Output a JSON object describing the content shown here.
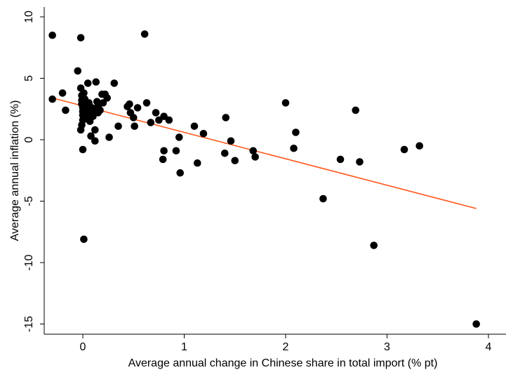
{
  "chart_data": {
    "type": "scatter",
    "xlabel": "Average annual change in Chinese share in total import (% pt)",
    "ylabel": "Average annual inflation (%)",
    "xlim": [
      -0.35,
      4.0
    ],
    "ylim": [
      -16,
      10.5
    ],
    "x_ticks": [
      "0",
      "1",
      "2",
      "3",
      "4"
    ],
    "y_ticks": [
      "10",
      "5",
      "0",
      "-5",
      "-10",
      "-15"
    ],
    "grid": false,
    "legend": "none",
    "colors": {
      "points": "#000000",
      "fit_line": "#ff5a1f",
      "axis": "#000000"
    },
    "series": [
      {
        "points": [
          [
            -0.3,
            8.5
          ],
          [
            -0.3,
            3.3
          ],
          [
            -0.2,
            3.8
          ],
          [
            -0.17,
            2.4
          ],
          [
            -0.05,
            5.6
          ],
          [
            -0.02,
            8.3
          ],
          [
            -0.02,
            4.2
          ],
          [
            -0.01,
            3.6
          ],
          [
            -0.01,
            3.2
          ],
          [
            -0.01,
            2.9
          ],
          [
            0.0,
            2.6
          ],
          [
            0.0,
            2.3
          ],
          [
            0.0,
            2.0
          ],
          [
            0.0,
            1.6
          ],
          [
            -0.01,
            1.2
          ],
          [
            -0.02,
            0.8
          ],
          [
            0.0,
            -0.8
          ],
          [
            0.01,
            -8.1
          ],
          [
            0.01,
            3.8
          ],
          [
            0.02,
            3.3
          ],
          [
            0.03,
            2.8
          ],
          [
            0.04,
            2.2
          ],
          [
            0.04,
            1.7
          ],
          [
            0.05,
            4.6
          ],
          [
            0.05,
            2.5
          ],
          [
            0.06,
            3.0
          ],
          [
            0.07,
            2.1
          ],
          [
            0.07,
            1.5
          ],
          [
            0.08,
            0.3
          ],
          [
            0.09,
            2.6
          ],
          [
            0.1,
            1.9
          ],
          [
            0.11,
            2.4
          ],
          [
            0.12,
            0.8
          ],
          [
            0.12,
            -0.1
          ],
          [
            0.13,
            4.7
          ],
          [
            0.14,
            3.1
          ],
          [
            0.15,
            2.7
          ],
          [
            0.15,
            2.2
          ],
          [
            0.17,
            2.4
          ],
          [
            0.19,
            3.7
          ],
          [
            0.2,
            3.0
          ],
          [
            0.22,
            3.7
          ],
          [
            0.24,
            3.4
          ],
          [
            0.26,
            0.2
          ],
          [
            0.31,
            4.6
          ],
          [
            0.35,
            1.1
          ],
          [
            0.44,
            2.7
          ],
          [
            0.46,
            2.9
          ],
          [
            0.47,
            2.2
          ],
          [
            0.5,
            1.8
          ],
          [
            0.51,
            1.1
          ],
          [
            0.54,
            2.6
          ],
          [
            0.61,
            8.6
          ],
          [
            0.63,
            3.0
          ],
          [
            0.67,
            1.4
          ],
          [
            0.72,
            2.2
          ],
          [
            0.75,
            1.6
          ],
          [
            0.79,
            -1.6
          ],
          [
            0.8,
            -0.9
          ],
          [
            0.8,
            1.9
          ],
          [
            0.85,
            1.6
          ],
          [
            0.92,
            -0.9
          ],
          [
            0.95,
            0.2
          ],
          [
            0.96,
            -2.7
          ],
          [
            1.1,
            1.1
          ],
          [
            1.13,
            -1.9
          ],
          [
            1.19,
            0.5
          ],
          [
            1.4,
            -1.1
          ],
          [
            1.41,
            1.8
          ],
          [
            1.46,
            -0.1
          ],
          [
            1.5,
            -1.7
          ],
          [
            1.68,
            -0.9
          ],
          [
            1.7,
            -1.4
          ],
          [
            2.0,
            3.0
          ],
          [
            2.08,
            -0.7
          ],
          [
            2.1,
            0.6
          ],
          [
            2.37,
            -4.8
          ],
          [
            2.54,
            -1.6
          ],
          [
            2.69,
            2.4
          ],
          [
            2.73,
            -1.8
          ],
          [
            2.87,
            -8.6
          ],
          [
            3.17,
            -0.8
          ],
          [
            3.32,
            -0.5
          ],
          [
            3.88,
            -15.0
          ]
        ]
      }
    ],
    "fit_line": {
      "x": [
        -0.3,
        3.88
      ],
      "y": [
        3.4,
        -5.6
      ]
    }
  }
}
